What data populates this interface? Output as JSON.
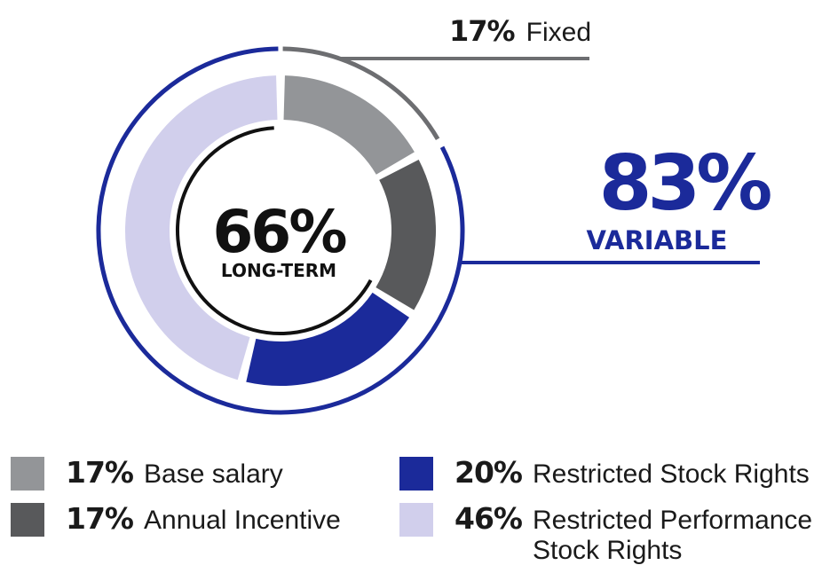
{
  "chart_data": {
    "type": "pie",
    "style": "donut",
    "center": {
      "value": "66%",
      "label": "LONG-TERM"
    },
    "series": [
      {
        "pct_label": "17%",
        "label": "Base salary",
        "value": 17,
        "color": "#939598"
      },
      {
        "pct_label": "17%",
        "label": "Annual Incentive",
        "value": 17,
        "color": "#58595b"
      },
      {
        "pct_label": "20%",
        "label": "Restricted Stock Rights",
        "value": 20,
        "color": "#1b2a9a"
      },
      {
        "pct_label": "46%",
        "label": "Restricted Performance Stock Rights",
        "value": 46,
        "color": "#d1cfec"
      }
    ],
    "groups": {
      "fixed": {
        "pct": "17%",
        "label": "Fixed",
        "value": 17,
        "color": "#6d6e71"
      },
      "variable": {
        "pct": "83%",
        "label": "VARIABLE",
        "value": 83,
        "color": "#1b2a9a"
      }
    },
    "long_term_value": 66,
    "legend_position": "bottom"
  }
}
